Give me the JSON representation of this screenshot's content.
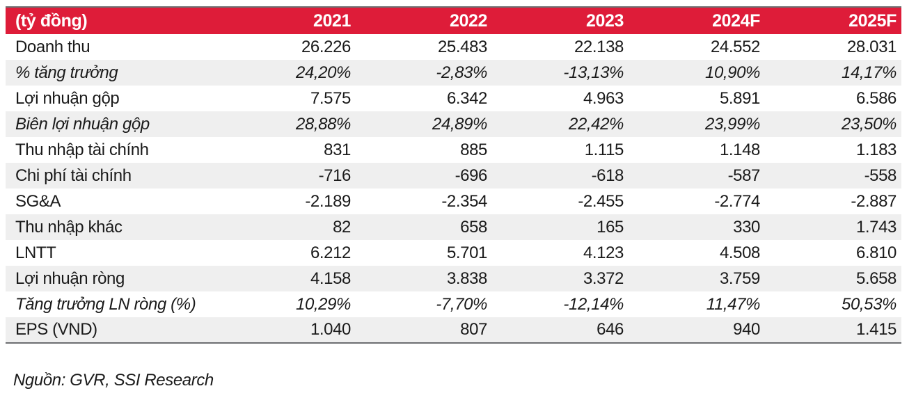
{
  "colors": {
    "header_bg": "#de1c39",
    "header_text": "#ffffff",
    "stripe_bg": "#efefef",
    "border": "#6d6e71",
    "text": "#1a1a1a"
  },
  "table": {
    "unit_label": "(tỷ đồng)",
    "columns": [
      "2021",
      "2022",
      "2023",
      "2024F",
      "2025F"
    ],
    "rows": [
      {
        "label": "Doanh thu",
        "italic": false,
        "values": [
          "26.226",
          "25.483",
          "22.138",
          "24.552",
          "28.031"
        ]
      },
      {
        "label": "% tăng trưởng",
        "italic": true,
        "values": [
          "24,20%",
          "-2,83%",
          "-13,13%",
          "10,90%",
          "14,17%"
        ]
      },
      {
        "label": "Lợi nhuận gộp",
        "italic": false,
        "values": [
          "7.575",
          "6.342",
          "4.963",
          "5.891",
          "6.586"
        ]
      },
      {
        "label": "Biên lợi nhuận gộp",
        "italic": true,
        "values": [
          "28,88%",
          "24,89%",
          "22,42%",
          "23,99%",
          "23,50%"
        ]
      },
      {
        "label": "Thu nhập tài chính",
        "italic": false,
        "values": [
          "831",
          "885",
          "1.115",
          "1.148",
          "1.183"
        ]
      },
      {
        "label": "Chi phí tài chính",
        "italic": false,
        "values": [
          "-716",
          "-696",
          "-618",
          "-587",
          "-558"
        ]
      },
      {
        "label": "SG&A",
        "italic": false,
        "values": [
          "-2.189",
          "-2.354",
          "-2.455",
          "-2.774",
          "-2.887"
        ]
      },
      {
        "label": "Thu nhập khác",
        "italic": false,
        "values": [
          "82",
          "658",
          "165",
          "330",
          "1.743"
        ]
      },
      {
        "label": "LNTT",
        "italic": false,
        "values": [
          "6.212",
          "5.701",
          "4.123",
          "4.508",
          "6.810"
        ]
      },
      {
        "label": "Lợi nhuận ròng",
        "italic": false,
        "values": [
          "4.158",
          "3.838",
          "3.372",
          "3.759",
          "5.658"
        ]
      },
      {
        "label": "Tăng trưởng LN ròng (%)",
        "italic": true,
        "values": [
          "10,29%",
          "-7,70%",
          "-12,14%",
          "11,47%",
          "50,53%"
        ]
      },
      {
        "label": "EPS (VND)",
        "italic": false,
        "values": [
          "1.040",
          "807",
          "646",
          "940",
          "1.415"
        ]
      }
    ]
  },
  "footer": {
    "source": "Nguồn: GVR, SSI Research"
  }
}
